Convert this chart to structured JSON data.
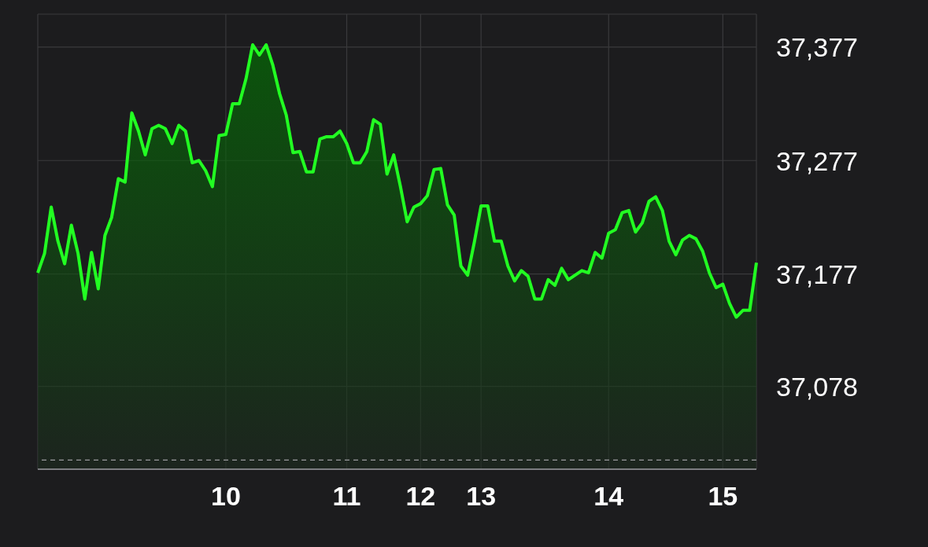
{
  "chart_data": {
    "type": "area",
    "color": "#22ff22",
    "categories": [
      null,
      null,
      null,
      null,
      null,
      null,
      null,
      null,
      null,
      null,
      null,
      null,
      null,
      null,
      null,
      null,
      null,
      null,
      null,
      null,
      null,
      null,
      null,
      null,
      null,
      null,
      null,
      null,
      "10",
      null,
      null,
      null,
      null,
      null,
      null,
      null,
      null,
      null,
      null,
      null,
      null,
      null,
      null,
      null,
      null,
      null,
      "11",
      null,
      null,
      null,
      null,
      null,
      null,
      null,
      null,
      null,
      null,
      "12",
      null,
      null,
      null,
      null,
      null,
      null,
      null,
      null,
      "13",
      null,
      null,
      null,
      null,
      null,
      null,
      null,
      null,
      null,
      null,
      null,
      null,
      null,
      null,
      null,
      null,
      null,
      null,
      "14",
      null,
      null,
      null,
      null,
      null,
      null,
      null,
      null,
      null,
      null,
      null,
      null,
      null,
      null,
      null,
      null,
      "15",
      null,
      null,
      null,
      null,
      null
    ],
    "values": [
      37178,
      37195,
      37236,
      37206,
      37186,
      37220,
      37195,
      37155,
      37196,
      37164,
      37211,
      37227,
      37261,
      37258,
      37319,
      37303,
      37282,
      37305,
      37308,
      37305,
      37292,
      37308,
      37303,
      37275,
      37277,
      37268,
      37254,
      37299,
      37300,
      37327,
      37327,
      37349,
      37379,
      37370,
      37379,
      37361,
      37336,
      37317,
      37284,
      37285,
      37267,
      37267,
      37296,
      37298,
      37298,
      37303,
      37292,
      37275,
      37275,
      37285,
      37313,
      37309,
      37265,
      37282,
      37254,
      37223,
      37236,
      37239,
      37246,
      37269,
      37270,
      37238,
      37229,
      37184,
      37176,
      37205,
      37237,
      37237,
      37206,
      37206,
      37184,
      37171,
      37180,
      37175,
      37155,
      37155,
      37172,
      37167,
      37182,
      37172,
      37176,
      37180,
      37178,
      37196,
      37191,
      37213,
      37216,
      37231,
      37233,
      37214,
      37222,
      37241,
      37245,
      37233,
      37206,
      37194,
      37207,
      37211,
      37208,
      37197,
      37178,
      37165,
      37168,
      37151,
      37139,
      37145,
      37145,
      37187
    ],
    "ylim": [
      37005,
      37406
    ],
    "yticks": [
      {
        "value": 37377,
        "label": "37,377"
      },
      {
        "value": 37277,
        "label": "37,277"
      },
      {
        "value": 37177,
        "label": "37,177"
      },
      {
        "value": 37078,
        "label": "37,078"
      }
    ],
    "grid": true,
    "ref_lines": [
      {
        "axis": "y",
        "value": 37013,
        "line_style": "dashed"
      }
    ]
  }
}
